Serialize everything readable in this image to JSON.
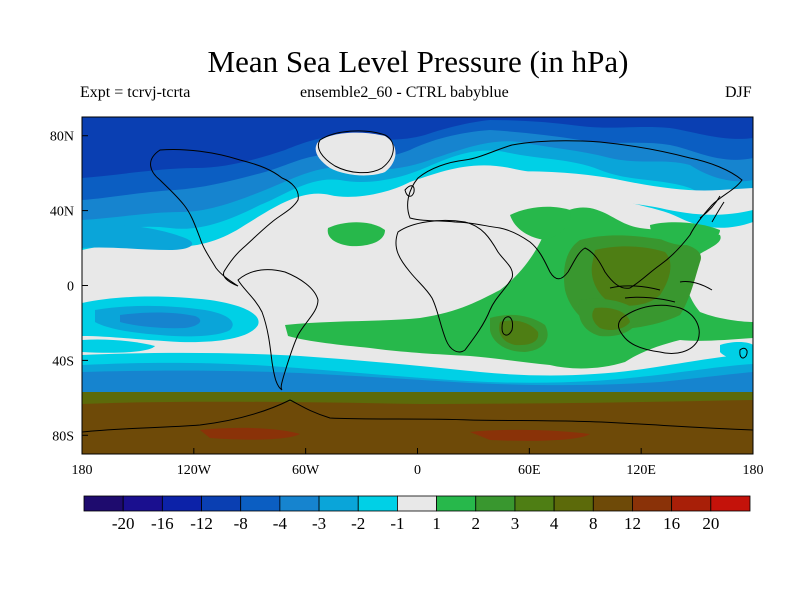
{
  "title": "Mean Sea Level Pressure (in hPa)",
  "subtitle_left": "Expt = tcrvj-tcrta",
  "subtitle_center": "ensemble2_60 - CTRL babyblue",
  "subtitle_right": "DJF",
  "map": {
    "projection": "cylindrical equidistant",
    "lon_range": [
      -180,
      180
    ],
    "lat_range": [
      -90,
      90
    ],
    "x_ticks": [
      {
        "value": -180,
        "label": "180"
      },
      {
        "value": -120,
        "label": "120W"
      },
      {
        "value": -60,
        "label": "60W"
      },
      {
        "value": 0,
        "label": "0"
      },
      {
        "value": 60,
        "label": "60E"
      },
      {
        "value": 120,
        "label": "120E"
      },
      {
        "value": 180,
        "label": "180"
      }
    ],
    "y_ticks": [
      {
        "value": 80,
        "label": "80N"
      },
      {
        "value": 40,
        "label": "40N"
      },
      {
        "value": 0,
        "label": "0"
      },
      {
        "value": -40,
        "label": "40S"
      },
      {
        "value": -80,
        "label": "80S"
      }
    ]
  },
  "colorbar": {
    "colors": [
      "#1e0b6e",
      "#1a0f8f",
      "#0c22a8",
      "#0a3fb2",
      "#0b5ec2",
      "#1684cf",
      "#0aa5d9",
      "#00d0e6",
      "#e8e8e8",
      "#27b84b",
      "#39972f",
      "#4e7e14",
      "#5c6a0a",
      "#6e4a08",
      "#8a3208",
      "#a81f08",
      "#c4120a"
    ],
    "labels": [
      "-20",
      "-16",
      "-12",
      "-8",
      "-4",
      "-3",
      "-2",
      "-1",
      "1",
      "2",
      "3",
      "4",
      "8",
      "12",
      "16",
      "20"
    ]
  },
  "field_colors": {
    "background": "#e8e8e8",
    "neg1": "#00d0e6",
    "neg2": "#0aa5d9",
    "neg3": "#1684cf",
    "neg4": "#0b5ec2",
    "neg8": "#0a3fb2",
    "pos1": "#27b84b",
    "pos2": "#39972f",
    "pos3": "#4e7e14",
    "pos4": "#5c6a0a",
    "pos8": "#6e4a08",
    "pos12": "#8a3208",
    "coast": "#000000"
  }
}
